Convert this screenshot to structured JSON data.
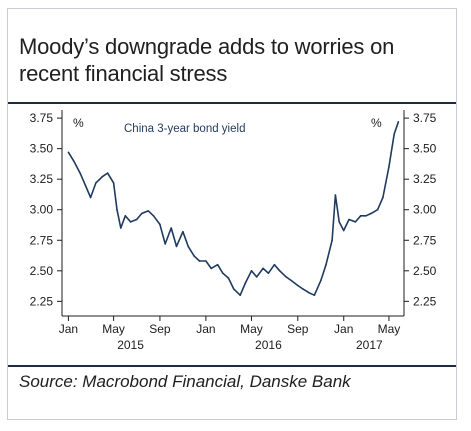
{
  "title": "Moody’s downgrade adds to worries on recent financial stress",
  "source": "Source: Macrobond Financial, Danske Bank",
  "colors": {
    "line": "#1f3a5f",
    "rule": "#1e2b3e",
    "text": "#1c1c1c"
  },
  "chart_data": {
    "type": "line",
    "series": [
      {
        "name": "China 3-year bond yield",
        "x": [
          "2015-01-01",
          "2015-01-15",
          "2015-02-01",
          "2015-02-15",
          "2015-03-01",
          "2015-03-15",
          "2015-04-01",
          "2015-04-15",
          "2015-05-01",
          "2015-05-10",
          "2015-05-20",
          "2015-06-01",
          "2015-06-15",
          "2015-07-01",
          "2015-07-15",
          "2015-08-01",
          "2015-08-15",
          "2015-09-01",
          "2015-09-15",
          "2015-10-01",
          "2015-10-15",
          "2015-11-01",
          "2015-11-15",
          "2015-12-01",
          "2015-12-15",
          "2016-01-01",
          "2016-01-15",
          "2016-02-01",
          "2016-02-15",
          "2016-03-01",
          "2016-03-15",
          "2016-04-01",
          "2016-04-15",
          "2016-05-01",
          "2016-05-15",
          "2016-06-01",
          "2016-06-15",
          "2016-07-01",
          "2016-07-15",
          "2016-08-01",
          "2016-08-15",
          "2016-09-01",
          "2016-09-15",
          "2016-10-01",
          "2016-10-15",
          "2016-11-01",
          "2016-11-15",
          "2016-12-01",
          "2016-12-10",
          "2016-12-20",
          "2017-01-01",
          "2017-01-15",
          "2017-02-01",
          "2017-02-15",
          "2017-03-01",
          "2017-03-15",
          "2017-04-01",
          "2017-04-15",
          "2017-05-01",
          "2017-05-15",
          "2017-05-26"
        ],
        "values": [
          3.47,
          3.4,
          3.3,
          3.2,
          3.1,
          3.22,
          3.27,
          3.3,
          3.22,
          3.0,
          2.85,
          2.95,
          2.9,
          2.92,
          2.97,
          2.99,
          2.95,
          2.88,
          2.72,
          2.85,
          2.7,
          2.82,
          2.7,
          2.62,
          2.58,
          2.58,
          2.52,
          2.55,
          2.48,
          2.44,
          2.35,
          2.3,
          2.4,
          2.5,
          2.45,
          2.52,
          2.48,
          2.55,
          2.5,
          2.45,
          2.42,
          2.38,
          2.35,
          2.32,
          2.3,
          2.42,
          2.55,
          2.75,
          3.12,
          2.9,
          2.83,
          2.92,
          2.9,
          2.95,
          2.95,
          2.97,
          3.0,
          3.1,
          3.35,
          3.62,
          3.72
        ]
      }
    ],
    "x_ticks": [
      {
        "date": "2015-01-01",
        "label": "Jan"
      },
      {
        "date": "2015-05-01",
        "label": "May"
      },
      {
        "date": "2015-09-01",
        "label": "Sep"
      },
      {
        "date": "2016-01-01",
        "label": "Jan"
      },
      {
        "date": "2016-05-01",
        "label": "May"
      },
      {
        "date": "2016-09-01",
        "label": "Sep"
      },
      {
        "date": "2017-01-01",
        "label": "Jan"
      },
      {
        "date": "2017-05-01",
        "label": "May"
      }
    ],
    "years": [
      {
        "label": "2015",
        "center": "2015-06-15"
      },
      {
        "label": "2016",
        "center": "2016-06-15"
      },
      {
        "label": "2017",
        "center": "2017-03-10"
      }
    ],
    "xlim": [
      "2014-12-15",
      "2017-06-10"
    ],
    "ylim": [
      2.13,
      3.8
    ],
    "y_ticks": [
      3.75,
      3.5,
      3.25,
      3.0,
      2.75,
      2.5,
      2.25
    ],
    "y_tick_labels": [
      "3.75",
      "3.50",
      "3.25",
      "3.00",
      "2.75",
      "2.50",
      "2.25"
    ],
    "ylabel_left": "%",
    "ylabel_right": "%",
    "legend_label": "China 3-year bond yield",
    "grid": false
  }
}
